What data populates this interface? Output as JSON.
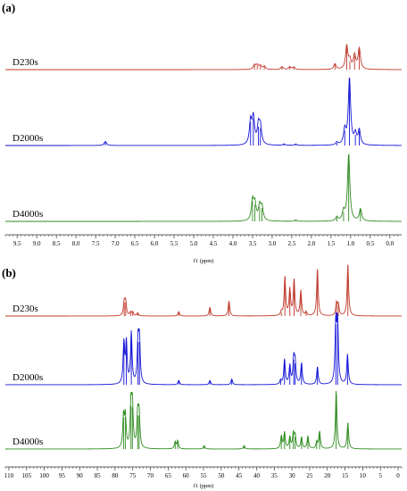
{
  "colors": {
    "red": "#c0392b",
    "blue": "#1414d8",
    "green": "#2e8b1e",
    "axis": "#333333"
  },
  "chart_data": [
    {
      "type": "line",
      "panel_label": "(a)",
      "xlabel": "f1 (ppm)",
      "x_reversed": true,
      "xlim": [
        9.8,
        -0.3
      ],
      "x_ticks": [
        "9.5",
        "9.0",
        "8.5",
        "8.0",
        "7.5",
        "7.0",
        "6.5",
        "6.0",
        "5.5",
        "5.0",
        "4.5",
        "4.0",
        "3.5",
        "3.0",
        "2.5",
        "2.0",
        "1.5",
        "1.0",
        "0.5",
        "0.0"
      ],
      "series": [
        {
          "name": "D230s",
          "color": "red",
          "peaks": [
            {
              "x": 3.45,
              "h": 0.1
            },
            {
              "x": 3.38,
              "h": 0.09
            },
            {
              "x": 3.3,
              "h": 0.08
            },
            {
              "x": 3.2,
              "h": 0.07
            },
            {
              "x": 2.75,
              "h": 0.06
            },
            {
              "x": 2.55,
              "h": 0.06
            },
            {
              "x": 2.45,
              "h": 0.05
            },
            {
              "x": 1.4,
              "h": 0.12
            },
            {
              "x": 1.1,
              "h": 0.5
            },
            {
              "x": 1.02,
              "h": 0.18
            },
            {
              "x": 0.9,
              "h": 0.3
            },
            {
              "x": 0.78,
              "h": 0.45
            }
          ]
        },
        {
          "name": "D2000s",
          "color": "blue",
          "peaks": [
            {
              "x": 7.25,
              "h": 0.06
            },
            {
              "x": 3.55,
              "h": 0.35
            },
            {
              "x": 3.48,
              "h": 0.4
            },
            {
              "x": 3.35,
              "h": 0.28
            },
            {
              "x": 3.3,
              "h": 0.26
            },
            {
              "x": 2.7,
              "h": 0.02
            },
            {
              "x": 2.4,
              "h": 0.02
            },
            {
              "x": 1.35,
              "h": 0.04
            },
            {
              "x": 1.15,
              "h": 0.22
            },
            {
              "x": 1.03,
              "h": 1.0
            },
            {
              "x": 0.88,
              "h": 0.16
            },
            {
              "x": 0.78,
              "h": 0.22
            }
          ]
        },
        {
          "name": "D4000s",
          "color": "green",
          "peaks": [
            {
              "x": 3.5,
              "h": 0.3
            },
            {
              "x": 3.44,
              "h": 0.25
            },
            {
              "x": 3.32,
              "h": 0.22
            },
            {
              "x": 3.26,
              "h": 0.2
            },
            {
              "x": 2.4,
              "h": 0.02
            },
            {
              "x": 1.35,
              "h": 0.06
            },
            {
              "x": 1.18,
              "h": 0.14
            },
            {
              "x": 1.05,
              "h": 1.0
            },
            {
              "x": 0.75,
              "h": 0.18
            }
          ]
        }
      ]
    },
    {
      "type": "line",
      "panel_label": "(b)",
      "xlabel": "f1 (ppm)",
      "x_reversed": true,
      "xlim": [
        111,
        -1
      ],
      "x_ticks": [
        "110",
        "105",
        "100",
        "95",
        "90",
        "85",
        "80",
        "75",
        "70",
        "65",
        "60",
        "55",
        "50",
        "45",
        "40",
        "35",
        "30",
        "25",
        "20",
        "15",
        "10",
        "5",
        "0"
      ],
      "series": [
        {
          "name": "D230s",
          "color": "red",
          "peaks": [
            {
              "x": 77.4,
              "h": 0.22
            },
            {
              "x": 77.0,
              "h": 0.22
            },
            {
              "x": 75.6,
              "h": 0.06
            },
            {
              "x": 75.0,
              "h": 0.06
            },
            {
              "x": 73.6,
              "h": 0.05
            },
            {
              "x": 62.0,
              "h": 0.07
            },
            {
              "x": 53.2,
              "h": 0.14
            },
            {
              "x": 47.8,
              "h": 0.24
            },
            {
              "x": 33.0,
              "h": 0.06
            },
            {
              "x": 32.0,
              "h": 0.62
            },
            {
              "x": 30.6,
              "h": 0.42
            },
            {
              "x": 29.4,
              "h": 0.58
            },
            {
              "x": 27.5,
              "h": 0.4
            },
            {
              "x": 26.0,
              "h": 0.06
            },
            {
              "x": 22.8,
              "h": 0.75
            },
            {
              "x": 17.4,
              "h": 0.2
            },
            {
              "x": 16.9,
              "h": 0.18
            },
            {
              "x": 14.2,
              "h": 0.82
            }
          ]
        },
        {
          "name": "D2000s",
          "color": "blue",
          "peaks": [
            {
              "x": 77.5,
              "h": 0.58
            },
            {
              "x": 76.8,
              "h": 0.58
            },
            {
              "x": 75.4,
              "h": 0.72
            },
            {
              "x": 73.5,
              "h": 0.6
            },
            {
              "x": 73.1,
              "h": 0.6
            },
            {
              "x": 62.0,
              "h": 0.06
            },
            {
              "x": 53.2,
              "h": 0.06
            },
            {
              "x": 47.0,
              "h": 0.08
            },
            {
              "x": 33.2,
              "h": 0.06
            },
            {
              "x": 32.1,
              "h": 0.35
            },
            {
              "x": 30.6,
              "h": 0.26
            },
            {
              "x": 29.5,
              "h": 0.35
            },
            {
              "x": 29.1,
              "h": 0.3
            },
            {
              "x": 27.3,
              "h": 0.3
            },
            {
              "x": 22.8,
              "h": 0.25
            },
            {
              "x": 17.6,
              "h": 0.85
            },
            {
              "x": 17.1,
              "h": 0.85
            },
            {
              "x": 14.3,
              "h": 0.42
            }
          ]
        },
        {
          "name": "D4000s",
          "color": "green",
          "peaks": [
            {
              "x": 77.6,
              "h": 0.55
            },
            {
              "x": 77.1,
              "h": 0.55
            },
            {
              "x": 75.5,
              "h": 0.75
            },
            {
              "x": 75.1,
              "h": 0.72
            },
            {
              "x": 73.6,
              "h": 0.58
            },
            {
              "x": 73.2,
              "h": 0.58
            },
            {
              "x": 63.0,
              "h": 0.12
            },
            {
              "x": 62.3,
              "h": 0.14
            },
            {
              "x": 54.8,
              "h": 0.06
            },
            {
              "x": 43.5,
              "h": 0.06
            },
            {
              "x": 33.0,
              "h": 0.22
            },
            {
              "x": 32.1,
              "h": 0.28
            },
            {
              "x": 30.6,
              "h": 0.2
            },
            {
              "x": 29.6,
              "h": 0.26
            },
            {
              "x": 29.1,
              "h": 0.22
            },
            {
              "x": 27.3,
              "h": 0.2
            },
            {
              "x": 25.5,
              "h": 0.22
            },
            {
              "x": 23.0,
              "h": 0.12
            },
            {
              "x": 22.2,
              "h": 0.3
            },
            {
              "x": 17.5,
              "h": 1.0
            },
            {
              "x": 14.2,
              "h": 0.45
            }
          ]
        }
      ]
    }
  ]
}
